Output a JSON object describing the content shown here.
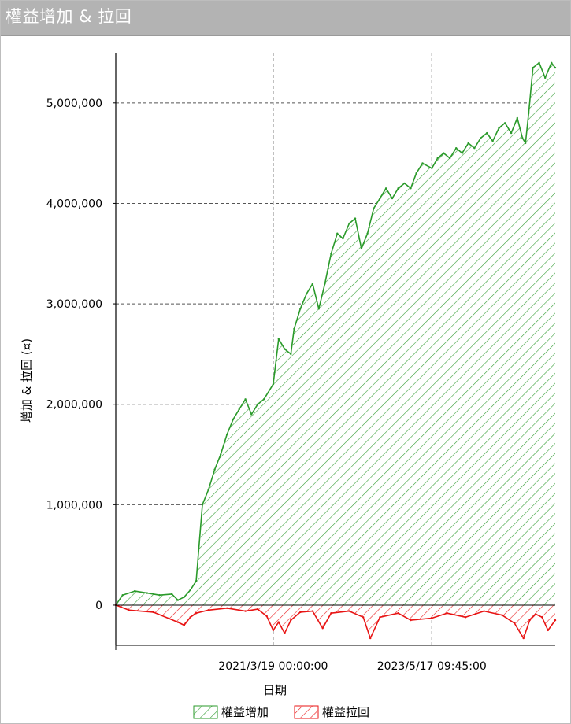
{
  "window": {
    "title": "權益增加 & 拉回"
  },
  "chart_data": {
    "type": "area",
    "xlabel": "日期",
    "ylabel": "增加 & 拉回 (¤)",
    "x_tick_labels": [
      "2021/3/19 00:00:00",
      "2023/5/17 09:45:00"
    ],
    "y_tick_labels": [
      "0",
      "1,000,000",
      "2,000,000",
      "3,000,000",
      "4,000,000",
      "5,000,000"
    ],
    "y_ticks": [
      0,
      1000000,
      2000000,
      3000000,
      4000000,
      5000000
    ],
    "ylim": [
      -400000,
      5500000
    ],
    "xlim": [
      "2019-01-26",
      "2025-01-20"
    ],
    "grid": true,
    "legend_position": "bottom-center",
    "colors": {
      "equity": "#2a9a2a",
      "drawdown": "#e81414"
    },
    "series": [
      {
        "name": "權益增加",
        "x": [
          "2019-01-26",
          "2019-03-01",
          "2019-05-01",
          "2019-07-01",
          "2019-09-01",
          "2019-11-01",
          "2019-12-01",
          "2020-01-01",
          "2020-02-01",
          "2020-03-01",
          "2020-04-01",
          "2020-05-01",
          "2020-06-01",
          "2020-07-01",
          "2020-08-01",
          "2020-09-01",
          "2020-10-01",
          "2020-11-01",
          "2020-12-01",
          "2021-01-01",
          "2021-02-01",
          "2021-03-19",
          "2021-04-15",
          "2021-05-15",
          "2021-06-15",
          "2021-07-01",
          "2021-08-01",
          "2021-09-01",
          "2021-10-01",
          "2021-11-01",
          "2021-12-01",
          "2022-01-01",
          "2022-02-01",
          "2022-03-01",
          "2022-04-01",
          "2022-05-01",
          "2022-06-01",
          "2022-07-01",
          "2022-08-01",
          "2022-09-01",
          "2022-10-01",
          "2022-11-01",
          "2022-12-01",
          "2023-01-01",
          "2023-02-01",
          "2023-03-01",
          "2023-04-01",
          "2023-05-17",
          "2023-06-15",
          "2023-07-15",
          "2023-08-15",
          "2023-09-15",
          "2023-10-15",
          "2023-11-15",
          "2023-12-15",
          "2024-01-15",
          "2024-02-15",
          "2024-03-15",
          "2024-04-15",
          "2024-05-15",
          "2024-06-15",
          "2024-07-15",
          "2024-08-10",
          "2024-08-25",
          "2024-09-10",
          "2024-10-01",
          "2024-11-01",
          "2024-12-01",
          "2025-01-01",
          "2025-01-20"
        ],
        "values": [
          0,
          100000,
          140000,
          120000,
          100000,
          110000,
          50000,
          80000,
          150000,
          240000,
          1000000,
          1150000,
          1350000,
          1500000,
          1700000,
          1850000,
          1950000,
          2050000,
          1900000,
          2000000,
          2050000,
          2200000,
          2650000,
          2550000,
          2500000,
          2750000,
          2950000,
          3100000,
          3200000,
          2950000,
          3200000,
          3500000,
          3700000,
          3650000,
          3800000,
          3850000,
          3550000,
          3700000,
          3950000,
          4050000,
          4150000,
          4050000,
          4150000,
          4200000,
          4150000,
          4300000,
          4400000,
          4350000,
          4450000,
          4500000,
          4450000,
          4550000,
          4500000,
          4600000,
          4550000,
          4650000,
          4700000,
          4620000,
          4750000,
          4800000,
          4700000,
          4850000,
          4650000,
          4600000,
          4900000,
          5350000,
          5400000,
          5250000,
          5400000,
          5350000
        ]
      },
      {
        "name": "權益拉回",
        "x": [
          "2019-01-26",
          "2019-04-01",
          "2019-08-01",
          "2019-12-01",
          "2020-01-01",
          "2020-02-01",
          "2020-03-01",
          "2020-05-01",
          "2020-08-01",
          "2020-11-01",
          "2021-01-01",
          "2021-02-15",
          "2021-03-19",
          "2021-04-15",
          "2021-05-15",
          "2021-06-15",
          "2021-08-01",
          "2021-10-01",
          "2021-11-20",
          "2022-01-01",
          "2022-04-01",
          "2022-06-10",
          "2022-07-15",
          "2022-09-01",
          "2022-12-01",
          "2023-02-01",
          "2023-05-17",
          "2023-08-01",
          "2023-11-01",
          "2024-02-01",
          "2024-05-01",
          "2024-07-01",
          "2024-08-15",
          "2024-09-15",
          "2024-10-15",
          "2024-11-15",
          "2024-12-15",
          "2025-01-20"
        ],
        "values": [
          0,
          -50000,
          -70000,
          -170000,
          -200000,
          -120000,
          -80000,
          -50000,
          -30000,
          -60000,
          -40000,
          -110000,
          -250000,
          -170000,
          -280000,
          -150000,
          -70000,
          -60000,
          -230000,
          -80000,
          -60000,
          -120000,
          -330000,
          -120000,
          -80000,
          -150000,
          -130000,
          -80000,
          -120000,
          -60000,
          -100000,
          -180000,
          -330000,
          -150000,
          -90000,
          -120000,
          -250000,
          -150000
        ]
      }
    ]
  }
}
